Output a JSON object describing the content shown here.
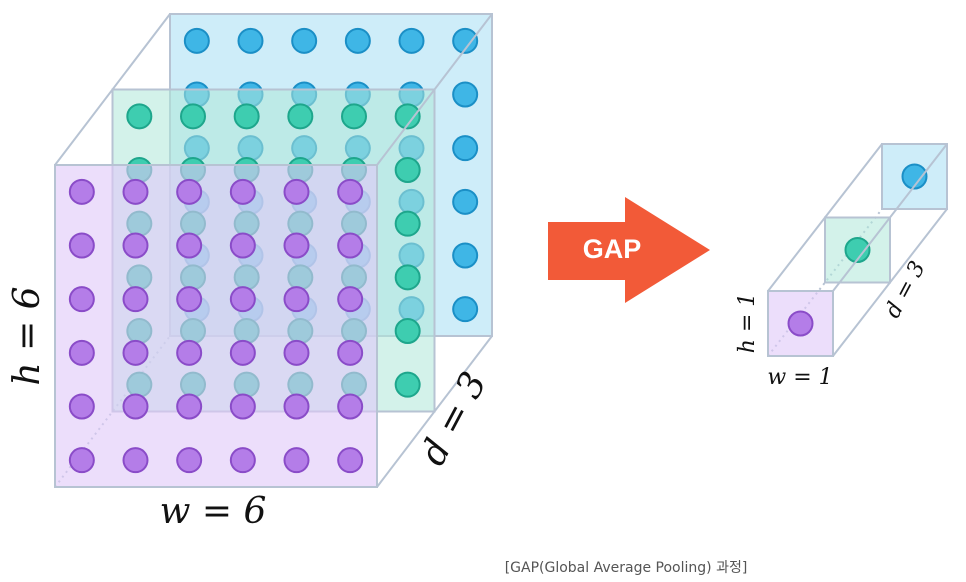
{
  "left": {
    "h_label": "h = 6",
    "w_label": "w = 6",
    "d_label": "d = 3"
  },
  "arrow": {
    "label": "GAP"
  },
  "right": {
    "h_label": "h = 1",
    "w_label": "w = 1",
    "d_label": "d = 3"
  },
  "caption": "[GAP(Global Average Pooling) 과정]"
}
